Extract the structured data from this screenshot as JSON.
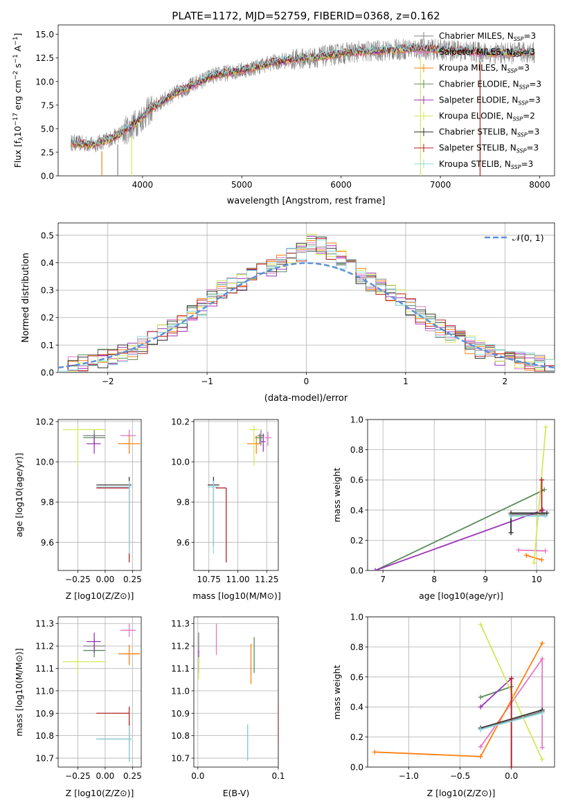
{
  "colors": {
    "chabrier_miles": "#808080",
    "salpeter_miles": "#e377c2",
    "kroupa_miles": "#ff7f0e",
    "chabrier_elodie": "#5a8a5a",
    "salpeter_elodie": "#9a33b8",
    "kroupa_elodie": "#d4e85a",
    "chabrier_stelib": "#333333",
    "salpeter_stelib": "#b22222",
    "kroupa_stelib": "#8fd8e0",
    "normal_curve": "#5b8fdb",
    "lines_ages": "#b8c6e8",
    "mass_blue": "#6a89d6"
  },
  "figure": {
    "title": "PLATE=1172, MJD=52759, FIBERID=0368, z=0.162"
  },
  "legend_spectrum": [
    "Chabrier MILES, N",
    "Salpeter MILES, N",
    "Kroupa MILES, N",
    "Chabrier ELODIE, N",
    "Salpeter ELODIE, N",
    "Kroupa ELODIE, N",
    "Chabrier STELIB, N",
    "Salpeter STELIB, N",
    "Kroupa STELIB, N"
  ],
  "legend_sub": "SSP",
  "legend_vals": [
    "=3",
    "=3",
    "=3",
    "=3",
    "=3",
    "=2",
    "=3",
    "=3",
    "=3"
  ],
  "chart_data": [
    {
      "type": "line",
      "title": "PLATE=1172, MJD=52759, FIBERID=0368, z=0.162",
      "xlabel": "wavelength [Angstrom, rest frame]",
      "ylabel_parts": [
        "Flux [f",
        "λ",
        "10",
        "−17",
        " erg cm",
        "−2",
        " s",
        "−1",
        " A",
        "−1",
        "]"
      ],
      "xlim": [
        3150,
        8150
      ],
      "ylim": [
        0,
        16
      ],
      "xticks": [
        4000,
        5000,
        6000,
        7000,
        8000
      ],
      "yticks": [
        0.0,
        2.5,
        5.0,
        7.5,
        10.0,
        12.5,
        15.0
      ],
      "ytick_labels": [
        "0.0",
        "2.5",
        "5.0",
        "7.5",
        "10.0",
        "12.5",
        "15.0"
      ],
      "continuum": {
        "x": [
          3300,
          3500,
          3700,
          3900,
          4100,
          4300,
          4500,
          4700,
          4900,
          5100,
          5300,
          5500,
          5700,
          5900,
          6100,
          6300,
          6500,
          6700,
          6900,
          7100,
          7300,
          7500,
          7700,
          7900
        ],
        "y": [
          3.5,
          3.3,
          4.0,
          5.3,
          7.2,
          8.6,
          9.6,
          10.6,
          11.0,
          11.4,
          12.0,
          12.3,
          12.5,
          12.8,
          13.1,
          13.2,
          13.3,
          13.5,
          13.4,
          13.3,
          13.2,
          13.0,
          13.0,
          13.1
        ]
      },
      "legend_position": "top-right"
    },
    {
      "type": "area",
      "xlabel": "(data-model)/error",
      "ylabel": "Normed distribution",
      "xlim": [
        -2.5,
        2.5
      ],
      "ylim": [
        0,
        0.545
      ],
      "xticks": [
        -2,
        -1,
        0,
        1,
        2
      ],
      "xtick_labels": [
        "−2",
        "−1",
        "0",
        "1",
        "2"
      ],
      "yticks": [
        0.0,
        0.1,
        0.2,
        0.3,
        0.4,
        0.5
      ],
      "ytick_labels": [
        "0.0",
        "0.1",
        "0.2",
        "0.3",
        "0.4",
        "0.5"
      ],
      "legend": "𝒩(0, 1)",
      "legend_position": "top-right",
      "hist_base": [
        0.02,
        0.025,
        0.03,
        0.04,
        0.05,
        0.06,
        0.07,
        0.08,
        0.1,
        0.12,
        0.14,
        0.16,
        0.18,
        0.21,
        0.24,
        0.27,
        0.3,
        0.31,
        0.33,
        0.35,
        0.37,
        0.38,
        0.4,
        0.42,
        0.44,
        0.47,
        0.46,
        0.44,
        0.41,
        0.38,
        0.35,
        0.33,
        0.31,
        0.29,
        0.27,
        0.24,
        0.21,
        0.18,
        0.16,
        0.14,
        0.12,
        0.1,
        0.08,
        0.07,
        0.06,
        0.05,
        0.045,
        0.04,
        0.035,
        0.03
      ]
    },
    {
      "type": "scatter",
      "xlabel": "Z [log10(Z/Z⊙)]",
      "ylabel": "age [log10(age/yr)]",
      "xlim": [
        -0.43,
        0.33
      ],
      "ylim": [
        9.46,
        10.21
      ],
      "xticks": [
        -0.25,
        0.0,
        0.25
      ],
      "xtick_labels": [
        "−0.25",
        "0.00",
        "0.25"
      ],
      "yticks": [
        9.6,
        9.8,
        10.0,
        10.2
      ],
      "ytick_labels": [
        "9.6",
        "9.8",
        "10.0",
        "10.2"
      ],
      "points": [
        {
          "x": -0.1,
          "y": 10.13,
          "xerr": [
            0.1,
            0.1
          ],
          "yerr": [
            0.05,
            0.03
          ]
        },
        {
          "x": 0.22,
          "y": 10.13,
          "xerr": [
            0.08,
            0.06
          ],
          "yerr": [
            0.03,
            0.03
          ]
        },
        {
          "x": 0.22,
          "y": 10.09,
          "xerr": [
            0.1,
            0.1
          ],
          "yerr": [
            0.05,
            0.04
          ]
        },
        {
          "x": -0.1,
          "y": 10.12,
          "xerr": [
            0.1,
            0.1
          ],
          "yerr": [
            0.03,
            0.02
          ]
        },
        {
          "x": -0.1,
          "y": 10.09,
          "xerr": [
            0.07,
            0.06
          ],
          "yerr": [
            0.05,
            0.04
          ]
        },
        {
          "x": -0.25,
          "y": 10.16,
          "xerr": [
            0.14,
            0.25
          ],
          "yerr": [
            0.18,
            0.02
          ]
        },
        {
          "x": 0.22,
          "y": 9.885,
          "xerr": [
            0.3,
            0.02
          ],
          "yerr": [
            0.3,
            0.04
          ]
        },
        {
          "x": 0.22,
          "y": 9.87,
          "xerr": [
            0.3,
            0.0
          ],
          "yerr": [
            0.37,
            0.0
          ]
        },
        {
          "x": 0.22,
          "y": 9.875,
          "xerr": [
            0.3,
            0.02
          ],
          "yerr": [
            0.33,
            0.03
          ]
        }
      ]
    },
    {
      "type": "scatter",
      "xlabel": "mass [log10(M/M⊙)]",
      "ylabel": "",
      "xlim": [
        10.62,
        11.35
      ],
      "ylim": [
        9.46,
        10.21
      ],
      "xticks": [
        10.75,
        11.0,
        11.25
      ],
      "xtick_labels": [
        "10.75",
        "11.00",
        "11.25"
      ],
      "yticks": [
        9.6,
        9.8,
        10.0,
        10.2
      ],
      "ytick_labels": [
        "9.6",
        "9.8",
        "10.0",
        "10.2"
      ],
      "points": [
        {
          "x": 11.2,
          "y": 10.13,
          "xerr": [
            0.03,
            0.03
          ],
          "yerr": [
            0.05,
            0.03
          ]
        },
        {
          "x": 11.26,
          "y": 10.12,
          "xerr": [
            0.03,
            0.03
          ],
          "yerr": [
            0.04,
            0.03
          ]
        },
        {
          "x": 11.16,
          "y": 10.09,
          "xerr": [
            0.08,
            0.04
          ],
          "yerr": [
            0.05,
            0.04
          ]
        },
        {
          "x": 11.19,
          "y": 10.12,
          "xerr": [
            0.04,
            0.03
          ],
          "yerr": [
            0.03,
            0.02
          ]
        },
        {
          "x": 11.22,
          "y": 10.1,
          "xerr": [
            0.02,
            0.02
          ],
          "yerr": [
            0.05,
            0.04
          ]
        },
        {
          "x": 11.14,
          "y": 10.16,
          "xerr": [
            0.04,
            0.04
          ],
          "yerr": [
            0.18,
            0.02
          ]
        },
        {
          "x": 10.79,
          "y": 9.885,
          "xerr": [
            0.05,
            0.05
          ],
          "yerr": [
            0.3,
            0.04
          ]
        },
        {
          "x": 10.9,
          "y": 9.87,
          "xerr": [
            0.09,
            0.0
          ],
          "yerr": [
            0.37,
            0.0
          ]
        },
        {
          "x": 10.79,
          "y": 9.875,
          "xerr": [
            0.05,
            0.04
          ],
          "yerr": [
            0.33,
            0.03
          ]
        }
      ]
    },
    {
      "type": "line",
      "xlabel": "age [log10(age/yr)]",
      "ylabel": "mass weight",
      "xlim": [
        6.7,
        10.35
      ],
      "ylim": [
        0,
        1.0
      ],
      "xticks": [
        7,
        8,
        9,
        10
      ],
      "xtick_labels": [
        "7",
        "8",
        "9",
        "10"
      ],
      "yticks": [
        0.0,
        0.2,
        0.4,
        0.6,
        0.8,
        1.0
      ],
      "ytick_labels": [
        "0.0",
        "0.2",
        "0.4",
        "0.6",
        "0.8",
        "1.0"
      ],
      "series": [
        {
          "x": [
            9.5,
            9.5,
            10.15
          ],
          "y": [
            0.25,
            0.37,
            0.37
          ]
        },
        {
          "x": [
            9.65,
            10.17
          ],
          "y": [
            0.135,
            0.13
          ]
        },
        {
          "x": [
            9.8,
            10.1
          ],
          "y": [
            0.1,
            0.07
          ]
        },
        {
          "x": [
            6.85,
            10.15
          ],
          "y": [
            0.0,
            0.535
          ]
        },
        {
          "x": [
            6.85,
            10.12
          ],
          "y": [
            0.0,
            0.4
          ]
        },
        {
          "x": [
            9.95,
            10.18
          ],
          "y": [
            0.05,
            0.95
          ]
        },
        {
          "x": [
            9.5,
            9.5,
            10.2
          ],
          "y": [
            0.25,
            0.38,
            0.38
          ]
        },
        {
          "x": [
            10.1,
            10.1
          ],
          "y": [
            0.6,
            0.4
          ]
        },
        {
          "x": [
            9.5,
            10.18
          ],
          "y": [
            0.36,
            0.36
          ]
        }
      ]
    },
    {
      "type": "scatter",
      "xlabel": "Z [log10(Z/Z⊙)]",
      "ylabel": "mass [log10(M/M⊙)]",
      "xlim": [
        -0.43,
        0.33
      ],
      "ylim": [
        10.66,
        11.33
      ],
      "xticks": [
        -0.25,
        0.0,
        0.25
      ],
      "xtick_labels": [
        "−0.25",
        "0.00",
        "0.25"
      ],
      "yticks": [
        10.7,
        10.8,
        10.9,
        11.0,
        11.1,
        11.2,
        11.3
      ],
      "ytick_labels": [
        "10.7",
        "10.8",
        "10.9",
        "11.0",
        "11.1",
        "11.2",
        "11.3"
      ],
      "points": [
        {
          "x": -0.1,
          "y": 11.2,
          "xerr": [
            0.1,
            0.1
          ],
          "yerr": [
            0.03,
            0.03
          ]
        },
        {
          "x": 0.22,
          "y": 11.27,
          "xerr": [
            0.08,
            0.06
          ],
          "yerr": [
            0.03,
            0.03
          ]
        },
        {
          "x": 0.22,
          "y": 11.165,
          "xerr": [
            0.1,
            0.1
          ],
          "yerr": [
            0.05,
            0.04
          ]
        },
        {
          "x": -0.1,
          "y": 11.18,
          "xerr": [
            0.1,
            0.1
          ],
          "yerr": [
            0.03,
            0.02
          ]
        },
        {
          "x": -0.1,
          "y": 11.22,
          "xerr": [
            0.07,
            0.06
          ],
          "yerr": [
            0.05,
            0.04
          ]
        },
        {
          "x": -0.25,
          "y": 11.13,
          "xerr": [
            0.14,
            0.25
          ],
          "yerr": [
            0.06,
            0.02
          ]
        },
        {
          "x": 0.22,
          "y": 10.785,
          "xerr": [
            0.3,
            0.02
          ],
          "yerr": [
            0.1,
            0.06
          ]
        },
        {
          "x": 0.22,
          "y": 10.9,
          "xerr": [
            0.3,
            0.0
          ],
          "yerr": [
            0.14,
            0.03
          ]
        },
        {
          "x": 0.22,
          "y": 10.785,
          "xerr": [
            0.3,
            0.02
          ],
          "yerr": [
            0.1,
            0.06
          ]
        }
      ]
    },
    {
      "type": "scatter",
      "xlabel": "E(B-V)",
      "ylabel": "",
      "xlim": [
        -0.005,
        0.1
      ],
      "ylim": [
        10.66,
        11.33
      ],
      "xticks": [
        0.0,
        0.1
      ],
      "xtick_labels": [
        "0.0",
        "0.1"
      ],
      "yticks": [
        10.7,
        10.8,
        10.9,
        11.0,
        11.1,
        11.2,
        11.3
      ],
      "ytick_labels": [
        "10.7",
        "10.8",
        "10.9",
        "11.0",
        "11.1",
        "11.2",
        "11.3"
      ],
      "points": [
        {
          "x": 0.001,
          "y": 11.2,
          "yerr": [
            0.03,
            0.06
          ]
        },
        {
          "x": 0.023,
          "y": 11.23,
          "yerr": [
            0.07,
            0.07
          ]
        },
        {
          "x": 0.066,
          "y": 11.12,
          "yerr": [
            0.09,
            0.09
          ]
        },
        {
          "x": 0.07,
          "y": 11.15,
          "yerr": [
            0.07,
            0.09
          ]
        },
        {
          "x": 0.001,
          "y": 11.13,
          "yerr": [
            0.05,
            0.05
          ]
        },
        {
          "x": 0.001,
          "y": 11.1,
          "yerr": [
            0.05,
            0.05
          ]
        },
        {
          "x": 0.062,
          "y": 10.77,
          "yerr": [
            0.08,
            0.08
          ]
        },
        {
          "x": 0.1,
          "y": 10.85,
          "yerr": [
            0.08,
            0.08
          ]
        },
        {
          "x": 0.062,
          "y": 10.77,
          "yerr": [
            0.08,
            0.08
          ]
        }
      ]
    },
    {
      "type": "line",
      "xlabel": "Z [log10(Z/Z⊙)]",
      "ylabel": "mass weight",
      "xlim": [
        -1.4,
        0.42
      ],
      "ylim": [
        0,
        1.0
      ],
      "xticks": [
        -1.0,
        -0.5,
        0.0
      ],
      "xtick_labels": [
        "−1.0",
        "−0.5",
        "0.0"
      ],
      "yticks": [
        0.0,
        0.2,
        0.4,
        0.6,
        0.8,
        1.0
      ],
      "ytick_labels": [
        "0.0",
        "0.2",
        "0.4",
        "0.6",
        "0.8",
        "1.0"
      ],
      "series": [
        {
          "x": [
            -0.3,
            0.3
          ],
          "y": [
            0.25,
            0.37
          ]
        },
        {
          "x": [
            -0.3,
            0.3,
            0.3
          ],
          "y": [
            0.135,
            0.72,
            0.13
          ]
        },
        {
          "x": [
            -1.33,
            -0.3,
            0.3
          ],
          "y": [
            0.1,
            0.07,
            0.825
          ]
        },
        {
          "x": [
            -0.3,
            0.0
          ],
          "y": [
            0.465,
            0.535
          ]
        },
        {
          "x": [
            -0.3,
            0.0,
            0.0
          ],
          "y": [
            0.4,
            0.59,
            0.0
          ]
        },
        {
          "x": [
            -0.3,
            0.3
          ],
          "y": [
            0.95,
            0.05
          ]
        },
        {
          "x": [
            -0.3,
            0.3
          ],
          "y": [
            0.26,
            0.38
          ]
        },
        {
          "x": [
            0.0,
            0.0
          ],
          "y": [
            0.0,
            0.59
          ]
        },
        {
          "x": [
            -0.3,
            0.3
          ],
          "y": [
            0.25,
            0.36
          ]
        }
      ]
    }
  ]
}
